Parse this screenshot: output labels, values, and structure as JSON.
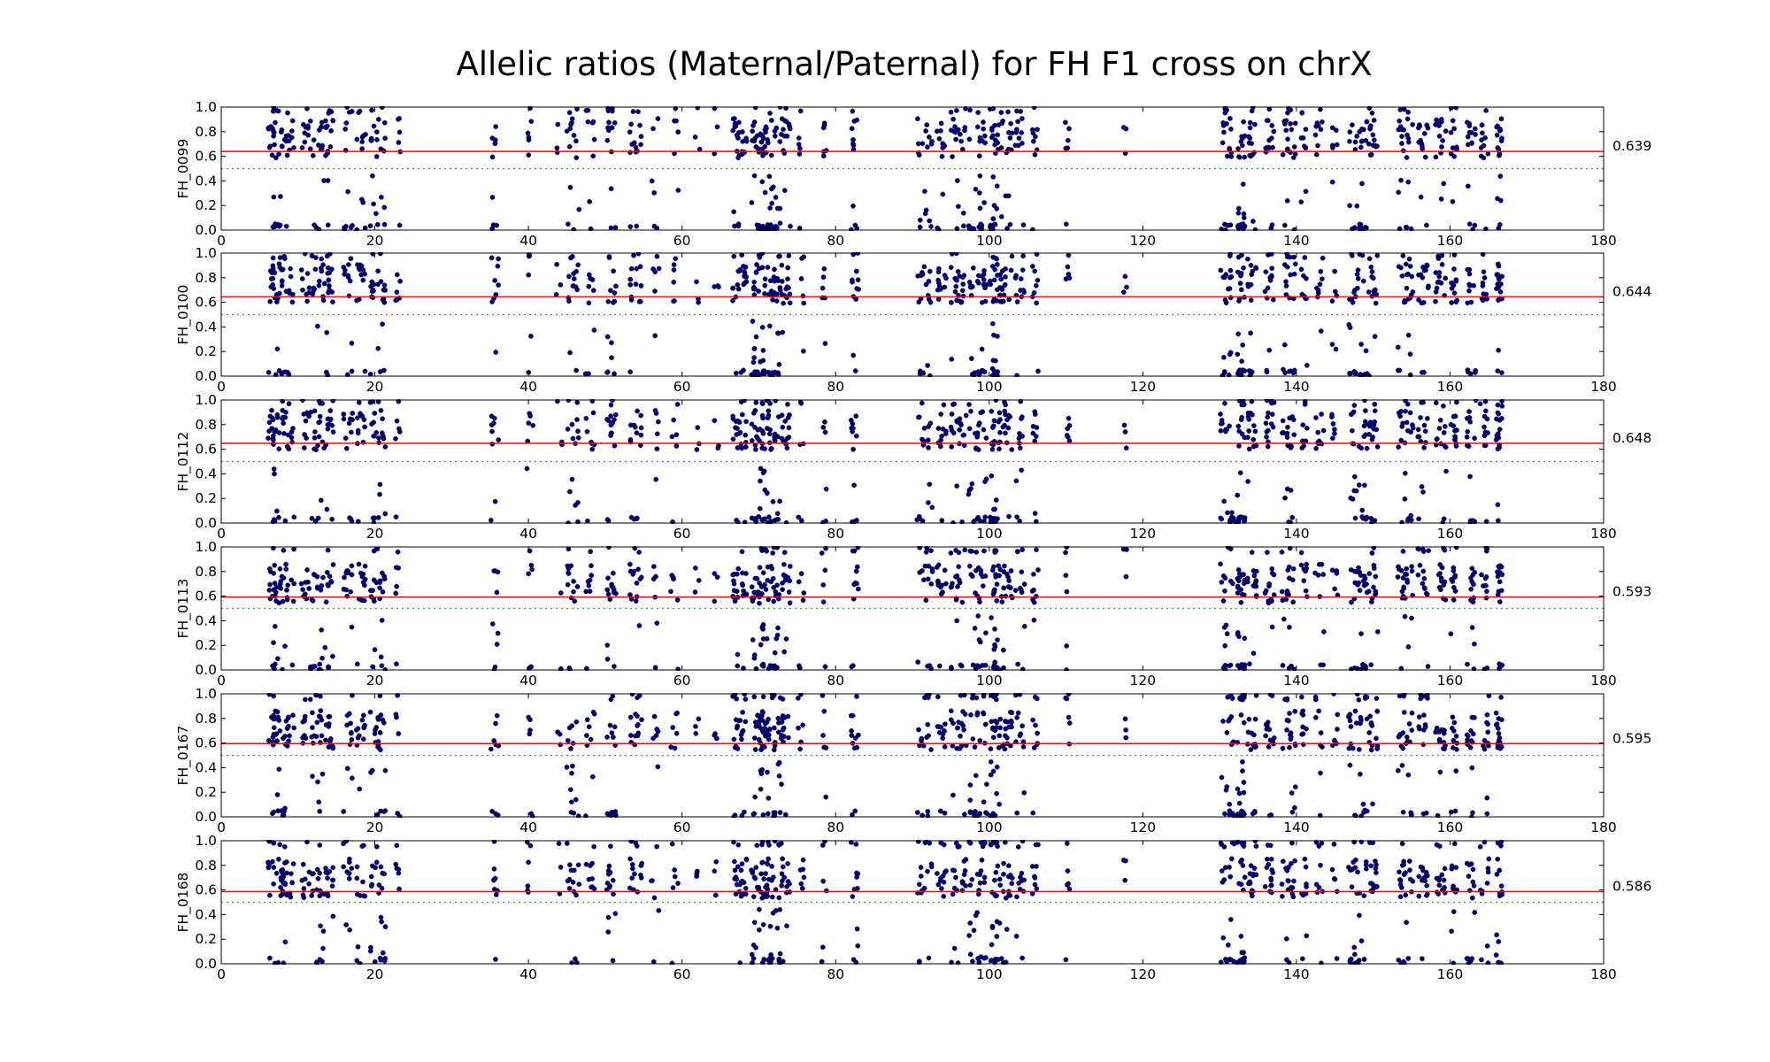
{
  "chart_data": {
    "type": "scatter",
    "title": "Allelic ratios (Maternal/Paternal) for FH F1 cross on chrX",
    "xlim": [
      0,
      180
    ],
    "ylim": [
      0,
      1
    ],
    "x_ticks": [
      "0",
      "20",
      "40",
      "60",
      "80",
      "100",
      "120",
      "140",
      "160",
      "180"
    ],
    "y_ticks": [
      "0.0",
      "0.2",
      "0.4",
      "0.6",
      "0.8",
      "1.0"
    ],
    "reference_line": 0.5,
    "colors": {
      "points": "#000066",
      "mean_line": "#ff0000",
      "reference_line": "#33aa33",
      "axes": "#000000"
    },
    "clusters": [
      {
        "x": 6.5,
        "w": 0.4,
        "dens": 3,
        "low": 1
      },
      {
        "x": 7.6,
        "w": 0.9,
        "dens": 9,
        "low": 2
      },
      {
        "x": 9.0,
        "w": 0.5,
        "dens": 3,
        "low": 1
      },
      {
        "x": 11.0,
        "w": 0.6,
        "dens": 3,
        "low": 0
      },
      {
        "x": 12.8,
        "w": 1.2,
        "dens": 8,
        "low": 2
      },
      {
        "x": 14.2,
        "w": 0.4,
        "dens": 3,
        "low": 1
      },
      {
        "x": 16.5,
        "w": 0.6,
        "dens": 4,
        "low": 1
      },
      {
        "x": 18.2,
        "w": 0.6,
        "dens": 4,
        "low": 1
      },
      {
        "x": 20.4,
        "w": 1.0,
        "dens": 8,
        "low": 2
      },
      {
        "x": 23.0,
        "w": 0.3,
        "dens": 2,
        "low": 1
      },
      {
        "x": 35.6,
        "w": 0.5,
        "dens": 3,
        "low": 2
      },
      {
        "x": 40.2,
        "w": 0.4,
        "dens": 2,
        "low": 1
      },
      {
        "x": 44.0,
        "w": 0.4,
        "dens": 1,
        "low": 1
      },
      {
        "x": 45.8,
        "w": 0.8,
        "dens": 5,
        "low": 2
      },
      {
        "x": 48.0,
        "w": 0.6,
        "dens": 3,
        "low": 1
      },
      {
        "x": 50.8,
        "w": 0.6,
        "dens": 5,
        "low": 2
      },
      {
        "x": 54.0,
        "w": 0.8,
        "dens": 5,
        "low": 1
      },
      {
        "x": 56.5,
        "w": 0.5,
        "dens": 2,
        "low": 1
      },
      {
        "x": 59.0,
        "w": 0.5,
        "dens": 2,
        "low": 1
      },
      {
        "x": 62.0,
        "w": 0.3,
        "dens": 1,
        "low": 0
      },
      {
        "x": 64.5,
        "w": 0.3,
        "dens": 1,
        "low": 0
      },
      {
        "x": 67.5,
        "w": 0.9,
        "dens": 8,
        "low": 1
      },
      {
        "x": 69.8,
        "w": 0.8,
        "dens": 9,
        "low": 2
      },
      {
        "x": 71.6,
        "w": 1.2,
        "dens": 14,
        "low": 3
      },
      {
        "x": 73.5,
        "w": 0.6,
        "dens": 5,
        "low": 1
      },
      {
        "x": 75.5,
        "w": 0.4,
        "dens": 2,
        "low": 1
      },
      {
        "x": 78.5,
        "w": 0.3,
        "dens": 2,
        "low": 1
      },
      {
        "x": 82.5,
        "w": 0.5,
        "dens": 4,
        "low": 2
      },
      {
        "x": 91.6,
        "w": 1.0,
        "dens": 6,
        "low": 2
      },
      {
        "x": 93.8,
        "w": 0.6,
        "dens": 4,
        "low": 1
      },
      {
        "x": 96.0,
        "w": 1.0,
        "dens": 7,
        "low": 1
      },
      {
        "x": 98.5,
        "w": 1.2,
        "dens": 10,
        "low": 3
      },
      {
        "x": 100.6,
        "w": 0.5,
        "dens": 8,
        "low": 4
      },
      {
        "x": 102.0,
        "w": 1.0,
        "dens": 7,
        "low": 1
      },
      {
        "x": 104.0,
        "w": 0.6,
        "dens": 4,
        "low": 1
      },
      {
        "x": 106.0,
        "w": 0.4,
        "dens": 3,
        "low": 1
      },
      {
        "x": 110.2,
        "w": 0.3,
        "dens": 2,
        "low": 1
      },
      {
        "x": 117.7,
        "w": 0.2,
        "dens": 1,
        "low": 0
      },
      {
        "x": 131.0,
        "w": 0.9,
        "dens": 7,
        "low": 3
      },
      {
        "x": 132.8,
        "w": 0.5,
        "dens": 9,
        "low": 4
      },
      {
        "x": 134.2,
        "w": 0.6,
        "dens": 5,
        "low": 1
      },
      {
        "x": 136.5,
        "w": 0.6,
        "dens": 5,
        "low": 1
      },
      {
        "x": 139.0,
        "w": 0.9,
        "dens": 7,
        "low": 2
      },
      {
        "x": 141.0,
        "w": 0.4,
        "dens": 3,
        "low": 1
      },
      {
        "x": 143.0,
        "w": 0.6,
        "dens": 3,
        "low": 1
      },
      {
        "x": 145.0,
        "w": 0.4,
        "dens": 2,
        "low": 1
      },
      {
        "x": 148.0,
        "w": 1.2,
        "dens": 10,
        "low": 3
      },
      {
        "x": 150.0,
        "w": 0.6,
        "dens": 5,
        "low": 1
      },
      {
        "x": 154.2,
        "w": 1.0,
        "dens": 8,
        "low": 2
      },
      {
        "x": 156.5,
        "w": 0.7,
        "dens": 5,
        "low": 1
      },
      {
        "x": 158.8,
        "w": 0.7,
        "dens": 5,
        "low": 1
      },
      {
        "x": 160.5,
        "w": 0.4,
        "dens": 4,
        "low": 1
      },
      {
        "x": 162.8,
        "w": 0.6,
        "dens": 5,
        "low": 2
      },
      {
        "x": 164.5,
        "w": 0.6,
        "dens": 4,
        "low": 1
      },
      {
        "x": 166.4,
        "w": 0.4,
        "dens": 6,
        "low": 1
      }
    ],
    "panels": [
      {
        "ylabel": "FH_0099",
        "mean": 0.639,
        "mean_label": "0.639"
      },
      {
        "ylabel": "FH_0100",
        "mean": 0.644,
        "mean_label": "0.644"
      },
      {
        "ylabel": "FH_0112",
        "mean": 0.648,
        "mean_label": "0.648"
      },
      {
        "ylabel": "FH_0113",
        "mean": 0.593,
        "mean_label": "0.593"
      },
      {
        "ylabel": "FH_0167",
        "mean": 0.595,
        "mean_label": "0.595"
      },
      {
        "ylabel": "FH_0168",
        "mean": 0.586,
        "mean_label": "0.586"
      }
    ]
  }
}
